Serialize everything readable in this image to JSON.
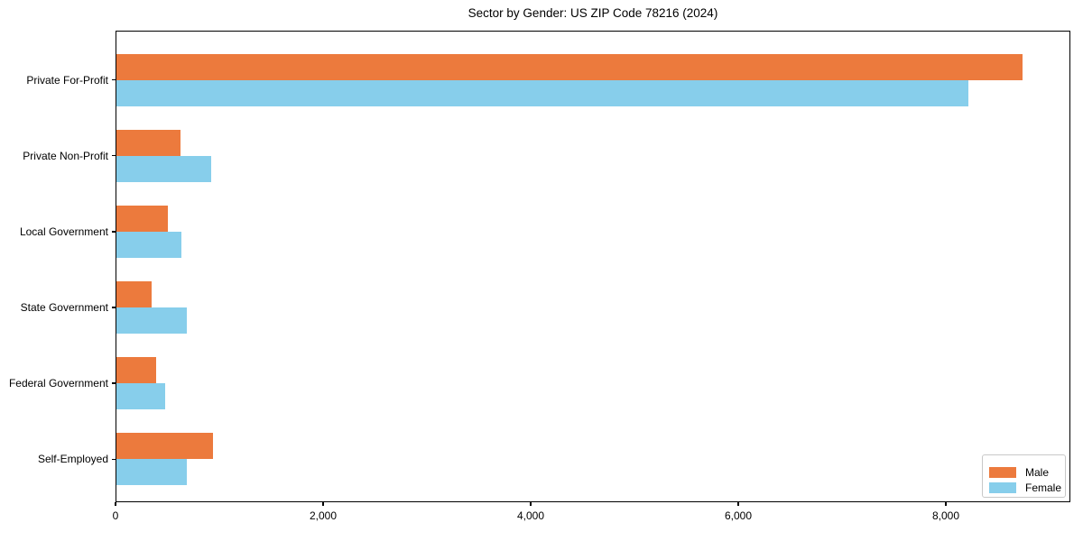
{
  "title": "Sector by Gender: US ZIP Code 78216 (2024)",
  "colors": {
    "male": "#EC7A3D",
    "female": "#87CEEB",
    "spine": "#000000",
    "legend_border": "#C8C8C8",
    "background": "#FFFFFF"
  },
  "legend": {
    "position": "lower right",
    "entries": [
      {
        "label": "Male",
        "color": "#EC7A3D"
      },
      {
        "label": "Female",
        "color": "#87CEEB"
      }
    ]
  },
  "chart_data": {
    "type": "bar",
    "orientation": "horizontal",
    "title": "Sector by Gender: US ZIP Code 78216 (2024)",
    "categories": [
      "Private For-Profit",
      "Private Non-Profit",
      "Local Government",
      "State Government",
      "Federal Government",
      "Self-Employed"
    ],
    "series": [
      {
        "name": "Male",
        "color": "#EC7A3D",
        "values": [
          8740,
          630,
          500,
          345,
          395,
          940
        ]
      },
      {
        "name": "Female",
        "color": "#87CEEB",
        "values": [
          8220,
          920,
          635,
          690,
          480,
          690
        ]
      }
    ],
    "xlabel": "",
    "ylabel": "",
    "xlim": [
      0,
      9200
    ],
    "xticks": [
      0,
      2000,
      4000,
      6000,
      8000
    ],
    "xtick_labels": [
      "0",
      "2,000",
      "4,000",
      "6,000",
      "8,000"
    ],
    "grid": false,
    "legend_position": "lower right"
  }
}
